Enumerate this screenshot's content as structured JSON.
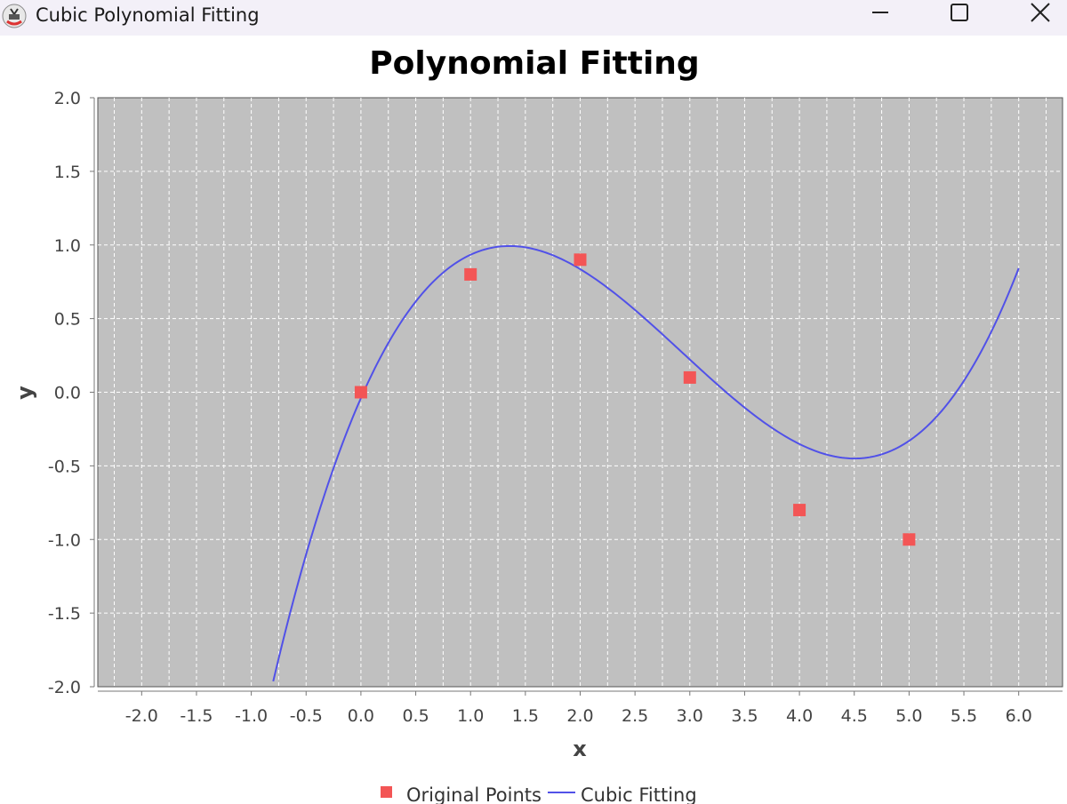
{
  "window": {
    "title": "Cubic Polynomial Fitting",
    "icons": [
      "java-app-icon",
      "minimize-icon",
      "maximize-icon",
      "close-icon"
    ]
  },
  "chart_data": {
    "type": "scatter",
    "title": "Polynomial Fitting",
    "xlabel": "x",
    "ylabel": "y",
    "xlim": [
      -2.4,
      6.4
    ],
    "ylim": [
      -2.0,
      2.0
    ],
    "x_ticks": [
      "-2.0",
      "-1.5",
      "-1.0",
      "-0.5",
      "0.0",
      "0.5",
      "1.0",
      "1.5",
      "2.0",
      "2.5",
      "3.0",
      "3.5",
      "4.0",
      "4.5",
      "5.0",
      "5.5",
      "6.0"
    ],
    "y_ticks": [
      "2.0",
      "1.5",
      "1.0",
      "0.5",
      "0.0",
      "-0.5",
      "-1.0",
      "-1.5",
      "-2.0"
    ],
    "grid": true,
    "legend_position": "bottom",
    "series": [
      {
        "name": "Original Points",
        "kind": "points",
        "color": "#f35555",
        "x": [
          0,
          1,
          2,
          3,
          4,
          5
        ],
        "y": [
          0.0,
          0.8,
          0.9,
          0.1,
          -0.8,
          -1.0
        ]
      },
      {
        "name": "Cubic Fitting",
        "kind": "curve",
        "color": "#5151e8",
        "x_range": [
          -0.8,
          6.0
        ],
        "coefficients": [
          -0.0397,
          1.6944,
          -0.8135,
          0.0926
        ]
      }
    ],
    "colors": {
      "plot_background": "#c0c0c0",
      "grid": "#ffffff"
    }
  }
}
